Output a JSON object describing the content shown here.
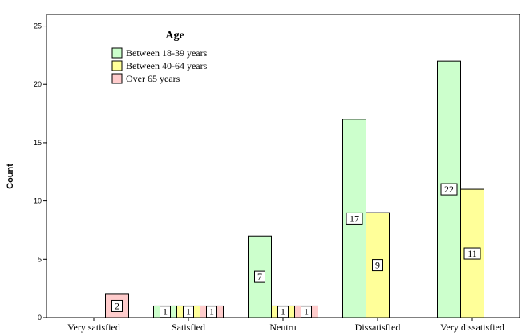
{
  "chart_data": {
    "type": "bar",
    "title": "",
    "xlabel": "",
    "ylabel": "Count",
    "ylim": [
      0,
      26
    ],
    "yticks": [
      0,
      5,
      10,
      15,
      20,
      25
    ],
    "grid": false,
    "legend_position": "top-left",
    "legend_title": "Age",
    "categories": [
      "Very satisfied",
      "Satisfied",
      "Neutru",
      "Dissatisfied",
      "Very dissatisfied"
    ],
    "series": [
      {
        "name": "Between 18-39 years",
        "color": "#ccffcc",
        "values": [
          null,
          1,
          7,
          17,
          22
        ]
      },
      {
        "name": "Between 40-64 years",
        "color": "#ffff99",
        "values": [
          null,
          1,
          1,
          9,
          11
        ]
      },
      {
        "name": "Over 65 years",
        "color": "#ffcccc",
        "values": [
          2,
          1,
          1,
          null,
          null
        ]
      }
    ]
  }
}
